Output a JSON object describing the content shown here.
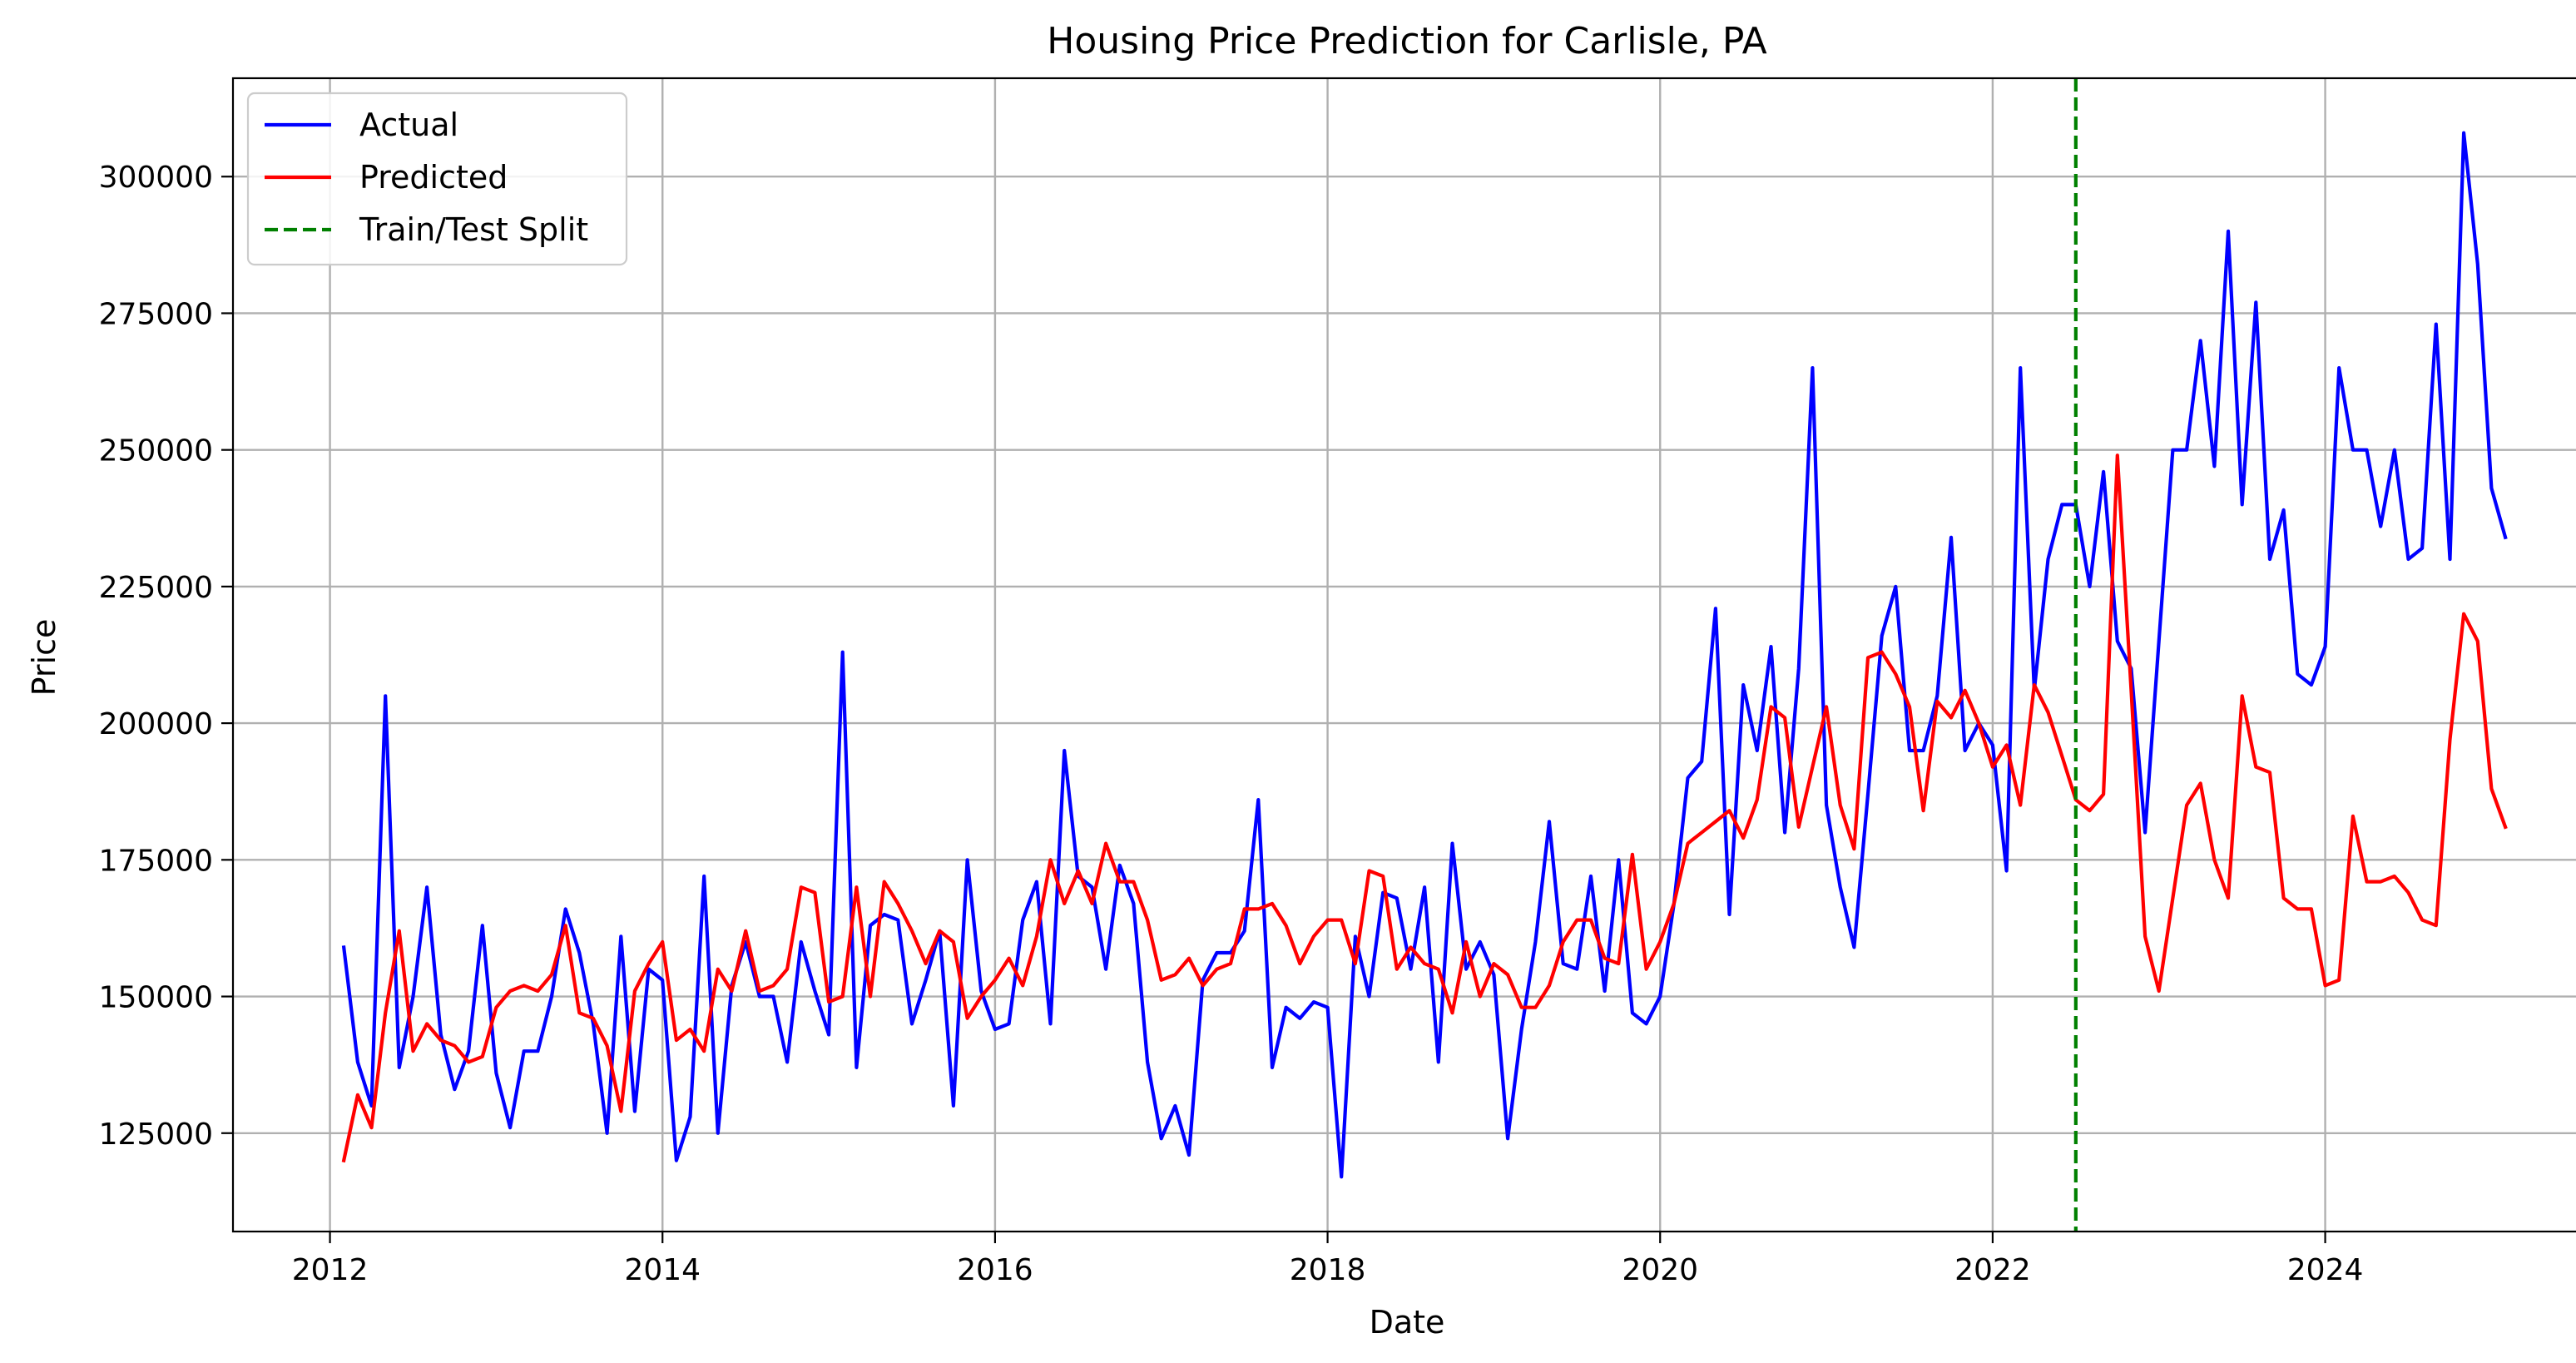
{
  "chart_data": {
    "type": "line",
    "title": "Housing Price Prediction for Carlisle, PA",
    "xlabel": "Date",
    "ylabel": "Price",
    "x_range": [
      "2011-06-01",
      "2025-07-15"
    ],
    "y_range": [
      107000,
      318000
    ],
    "x_ticks": [
      "2012",
      "2014",
      "2016",
      "2018",
      "2020",
      "2022",
      "2024"
    ],
    "y_ticks": [
      "125000",
      "150000",
      "175000",
      "200000",
      "225000",
      "250000",
      "275000",
      "300000"
    ],
    "y_tick_values": [
      125000,
      150000,
      175000,
      200000,
      225000,
      250000,
      275000,
      300000
    ],
    "grid": true,
    "legend_position": "top-left",
    "x_start": "2012-02",
    "x_frequency": "monthly",
    "split_date": "2022-07",
    "series": [
      {
        "name": "Actual",
        "color": "#0000ff",
        "dash": "solid",
        "values": [
          159000,
          138000,
          130000,
          205000,
          137000,
          150000,
          170000,
          143000,
          133000,
          140000,
          163000,
          136000,
          126000,
          140000,
          140000,
          150000,
          166000,
          158000,
          145000,
          125000,
          161000,
          129000,
          155000,
          153000,
          120000,
          128000,
          172000,
          125000,
          152000,
          160000,
          150000,
          150000,
          138000,
          160000,
          151000,
          143000,
          213000,
          137000,
          163000,
          165000,
          164000,
          145000,
          153000,
          162000,
          130000,
          175000,
          151000,
          144000,
          145000,
          164000,
          171000,
          145000,
          195000,
          172000,
          170000,
          155000,
          174000,
          167000,
          138000,
          124000,
          130000,
          121000,
          153000,
          158000,
          158000,
          162000,
          186000,
          137000,
          148000,
          146000,
          149000,
          148000,
          117000,
          161000,
          150000,
          169000,
          168000,
          155000,
          170000,
          138000,
          178000,
          155000,
          160000,
          154000,
          124000,
          144000,
          160000,
          182000,
          156000,
          155000,
          172000,
          151000,
          175000,
          147000,
          145000,
          150000,
          167000,
          190000,
          193000,
          221000,
          165000,
          207000,
          195000,
          214000,
          180000,
          210000,
          265000,
          185000,
          170000,
          159000,
          187000,
          216000,
          225000,
          195000,
          195000,
          205000,
          234000,
          195000,
          200000,
          196000,
          173000,
          265000,
          206000,
          230000,
          240000,
          240000,
          225000,
          246000,
          215000,
          210000,
          180000,
          215000,
          250000,
          250000,
          270000,
          247000,
          290000,
          240000,
          277000,
          230000,
          239000,
          209000,
          207000,
          214000,
          265000,
          250000,
          250000,
          236000,
          250000,
          230000,
          232000,
          273000,
          230000,
          308000,
          284000,
          243000,
          234000
        ]
      },
      {
        "name": "Predicted",
        "color": "#ff0000",
        "dash": "solid",
        "values": [
          120000,
          132000,
          126000,
          147000,
          162000,
          140000,
          145000,
          142000,
          141000,
          138000,
          139000,
          148000,
          151000,
          152000,
          151000,
          154000,
          163000,
          147000,
          146000,
          141000,
          129000,
          151000,
          156000,
          160000,
          142000,
          144000,
          140000,
          155000,
          151000,
          162000,
          151000,
          152000,
          155000,
          170000,
          169000,
          149000,
          150000,
          170000,
          150000,
          171000,
          167000,
          162000,
          156000,
          162000,
          160000,
          146000,
          150000,
          153000,
          157000,
          152000,
          161000,
          175000,
          167000,
          173000,
          167000,
          178000,
          171000,
          171000,
          164000,
          153000,
          154000,
          157000,
          152000,
          155000,
          156000,
          166000,
          166000,
          167000,
          163000,
          156000,
          161000,
          164000,
          164000,
          156000,
          173000,
          172000,
          155000,
          159000,
          156000,
          155000,
          147000,
          160000,
          150000,
          156000,
          154000,
          148000,
          148000,
          152000,
          160000,
          164000,
          164000,
          157000,
          156000,
          176000,
          155000,
          160000,
          167000,
          178000,
          180000,
          182000,
          184000,
          179000,
          186000,
          203000,
          201000,
          181000,
          192000,
          203000,
          185000,
          177000,
          212000,
          213000,
          209000,
          203000,
          184000,
          204000,
          201000,
          206000,
          200000,
          192000,
          196000,
          185000,
          207000,
          202000,
          194000,
          186000,
          184000,
          187000,
          249000,
          206000,
          161000,
          151000,
          168000,
          185000,
          189000,
          175000,
          168000,
          205000,
          192000,
          191000,
          168000,
          166000,
          166000,
          152000,
          153000,
          183000,
          171000,
          171000,
          172000,
          169000,
          164000,
          163000,
          197000,
          220000,
          215000,
          188000,
          181000
        ]
      },
      {
        "name": "Train/Test Split",
        "color": "#008000",
        "dash": "dashed"
      }
    ]
  }
}
